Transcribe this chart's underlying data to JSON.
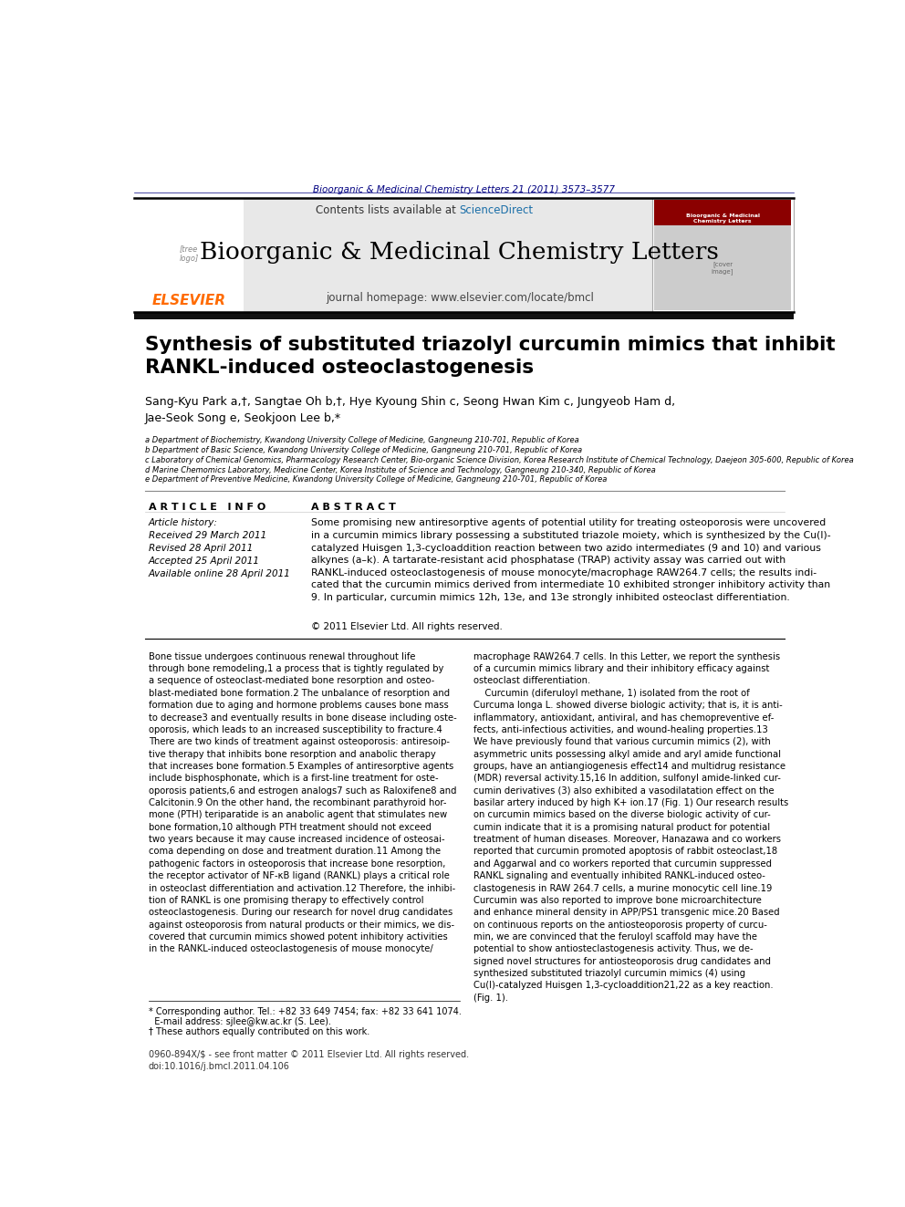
{
  "bg_color": "#ffffff",
  "top_bar_color": "#000080",
  "journal_citation": "Bioorganic & Medicinal Chemistry Letters 21 (2011) 3573–3577",
  "journal_citation_color": "#000080",
  "header_bg": "#e8e8e8",
  "header_line_color": "#000000",
  "contents_text": "Contents lists available at ",
  "sciencedirect_text": "ScienceDirect",
  "sciencedirect_color": "#1a6ea8",
  "journal_name": "Bioorganic & Medicinal Chemistry Letters",
  "journal_name_fontsize": 18,
  "homepage_text": "journal homepage: www.elsevier.com/locate/bmcl",
  "elsevier_color": "#FF6B00",
  "separator_color": "#000000",
  "article_title": "Synthesis of substituted triazolyl curcumin mimics that inhibit\nRANKL-induced osteoclastogenesis",
  "authors": "Sang-Kyu Park a,†, Sangtae Oh b,†, Hye Kyoung Shin c, Seong Hwan Kim c, Jungyeob Ham d,\nJae-Seok Song e, Seokjoon Lee b,*",
  "affiliations": [
    "a Department of Biochemistry, Kwandong University College of Medicine, Gangneung 210-701, Republic of Korea",
    "b Department of Basic Science, Kwandong University College of Medicine, Gangneung 210-701, Republic of Korea",
    "c Laboratory of Chemical Genomics, Pharmacology Research Center, Bio-organic Science Division, Korea Research Institute of Chemical Technology, Daejeon 305-600, Republic of Korea",
    "d Marine Chemomics Laboratory, Medicine Center, Korea Institute of Science and Technology, Gangneung 210-340, Republic of Korea",
    "e Department of Preventive Medicine, Kwandong University College of Medicine, Gangneung 210-701, Republic of Korea"
  ],
  "article_info_header": "A R T I C L E   I N F O",
  "abstract_header": "A B S T R A C T",
  "article_history": "Article history:\nReceived 29 March 2011\nRevised 28 April 2011\nAccepted 25 April 2011\nAvailable online 28 April 2011",
  "abstract_text": "Some promising new antiresorptive agents of potential utility for treating osteoporosis were uncovered\nin a curcumin mimics library possessing a substituted triazole moiety, which is synthesized by the Cu(I)-\ncatalyzed Huisgen 1,3-cycloaddition reaction between two azido intermediates (9 and 10) and various\nalkynes (a–k). A tartarate-resistant acid phosphatase (TRAP) activity assay was carried out with\nRANKL-induced osteoclastogenesis of mouse monocyte/macrophage RAW264.7 cells; the results indi-\ncated that the curcumin mimics derived from intermediate 10 exhibited stronger inhibitory activity than\n9. In particular, curcumin mimics 12h, 13e, and 13e strongly inhibited osteoclast differentiation.",
  "copyright_text": "© 2011 Elsevier Ltd. All rights reserved.",
  "body_col1": "Bone tissue undergoes continuous renewal throughout life\nthrough bone remodeling,1 a process that is tightly regulated by\na sequence of osteoclast-mediated bone resorption and osteo-\nblast-mediated bone formation.2 The unbalance of resorption and\nformation due to aging and hormone problems causes bone mass\nto decrease3 and eventually results in bone disease including oste-\noporosis, which leads to an increased susceptibility to fracture.4\nThere are two kinds of treatment against osteoporosis: antiresoip-\ntive therapy that inhibits bone resorption and anabolic therapy\nthat increases bone formation.5 Examples of antiresorptive agents\ninclude bisphosphonate, which is a first-line treatment for oste-\noporosis patients,6 and estrogen analogs7 such as Raloxifene8 and\nCalcitonin.9 On the other hand, the recombinant parathyroid hor-\nmone (PTH) teriparatide is an anabolic agent that stimulates new\nbone formation,10 although PTH treatment should not exceed\ntwo years because it may cause increased incidence of osteosai-\ncoma depending on dose and treatment duration.11 Among the\npathogenic factors in osteoporosis that increase bone resorption,\nthe receptor activator of NF-κB ligand (RANKL) plays a critical role\nin osteoclast differentiation and activation.12 Therefore, the inhibi-\ntion of RANKL is one promising therapy to effectively control\nosteoclastogenesis. During our research for novel drug candidates\nagainst osteoporosis from natural products or their mimics, we dis-\ncovered that curcumin mimics showed potent inhibitory activities\nin the RANKL-induced osteoclastogenesis of mouse monocyte/",
  "body_col2": "macrophage RAW264.7 cells. In this Letter, we report the synthesis\nof a curcumin mimics library and their inhibitory efficacy against\nosteoclast differentiation.\n    Curcumin (diferuloyl methane, 1) isolated from the root of\nCurcuma longa L. showed diverse biologic activity; that is, it is anti-\ninflammatory, antioxidant, antiviral, and has chemopreventive ef-\nfects, anti-infectious activities, and wound-healing properties.13\nWe have previously found that various curcumin mimics (2), with\nasymmetric units possessing alkyl amide and aryl amide functional\ngroups, have an antiangiogenesis effect14 and multidrug resistance\n(MDR) reversal activity.15,16 In addition, sulfonyl amide-linked cur-\ncumin derivatives (3) also exhibited a vasodilatation effect on the\nbasilar artery induced by high K+ ion.17 (Fig. 1) Our research results\non curcumin mimics based on the diverse biologic activity of cur-\ncumin indicate that it is a promising natural product for potential\ntreatment of human diseases. Moreover, Hanazawa and co workers\nreported that curcumin promoted apoptosis of rabbit osteoclast,18\nand Aggarwal and co workers reported that curcumin suppressed\nRANKL signaling and eventually inhibited RANKL-induced osteo-\nclastogenesis in RAW 264.7 cells, a murine monocytic cell line.19\nCurcumin was also reported to improve bone microarchitecture\nand enhance mineral density in APP/PS1 transgenic mice.20 Based\non continuous reports on the antiosteoporosis property of curcu-\nmin, we are convinced that the feruloyl scaffold may have the\npotential to show antiosteclastogenesis activity. Thus, we de-\nsigned novel structures for antiosteoporosis drug candidates and\nsynthesized substituted triazolyl curcumin mimics (4) using\nCu(I)-catalyzed Huisgen 1,3-cycloaddition21,22 as a key reaction.\n(Fig. 1).",
  "footnote1": "* Corresponding author. Tel.: +82 33 649 7454; fax: +82 33 641 1074.",
  "footnote2": "  E-mail address: sjlee@kw.ac.kr (S. Lee).",
  "footnote3": "† These authors equally contributed on this work.",
  "footer_text": "0960-894X/$ - see front matter © 2011 Elsevier Ltd. All rights reserved.\ndoi:10.1016/j.bmcl.2011.04.106"
}
